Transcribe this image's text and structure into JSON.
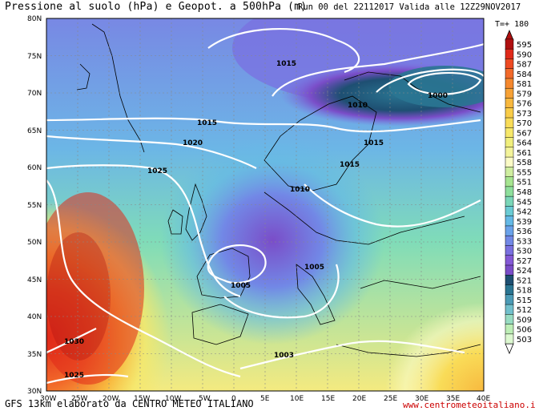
{
  "header": {
    "title": "Pressione al suolo (hPa) e Geopot. a 500hPa (m)",
    "run_info": "Run 00 del 22112017  Valida alle 12Z29NOV2017",
    "time_step": "T=+ 180"
  },
  "footer": {
    "credit": "GFS 13km elaborato da CENTRO METEO ITALIANO",
    "website": "www.centrometeoitaliano.it"
  },
  "map": {
    "lat_labels": [
      "80N",
      "75N",
      "70N",
      "65N",
      "60N",
      "55N",
      "50N",
      "45N",
      "40N",
      "35N",
      "30N"
    ],
    "lon_labels": [
      "30W",
      "25W",
      "20W",
      "15W",
      "10W",
      "5W",
      "0",
      "5E",
      "10E",
      "15E",
      "20E",
      "25E",
      "30E",
      "35E",
      "40E"
    ],
    "isobar_labels": [
      "1015",
      "1010",
      "1000",
      "1015",
      "1020",
      "1015",
      "1015",
      "1025",
      "1010",
      "1005",
      "1005",
      "1030",
      "1003",
      "1025"
    ]
  },
  "legend": {
    "values": [
      "595",
      "590",
      "587",
      "584",
      "581",
      "579",
      "576",
      "573",
      "570",
      "567",
      "564",
      "561",
      "558",
      "555",
      "551",
      "548",
      "545",
      "542",
      "539",
      "536",
      "533",
      "530",
      "527",
      "524",
      "521",
      "518",
      "515",
      "512",
      "509",
      "506",
      "503"
    ],
    "colors": [
      "#b01010",
      "#e02a1a",
      "#ee4a22",
      "#f26a2a",
      "#f5882e",
      "#f7a236",
      "#f8b83e",
      "#f9cc48",
      "#f9dc58",
      "#f7e86a",
      "#f1ef7c",
      "#f4f49a",
      "#fbfbc6",
      "#cfeea0",
      "#a6e590",
      "#8edf9c",
      "#7ad6b8",
      "#6acbd4",
      "#64b9e6",
      "#6aa2ea",
      "#7288e6",
      "#7a70e0",
      "#8459d6",
      "#7a4dc8",
      "#1e4f72",
      "#2a7592",
      "#4c9bb6",
      "#72c0cc",
      "#98dcc2",
      "#bdeeb6",
      "#dcf8d0"
    ]
  }
}
